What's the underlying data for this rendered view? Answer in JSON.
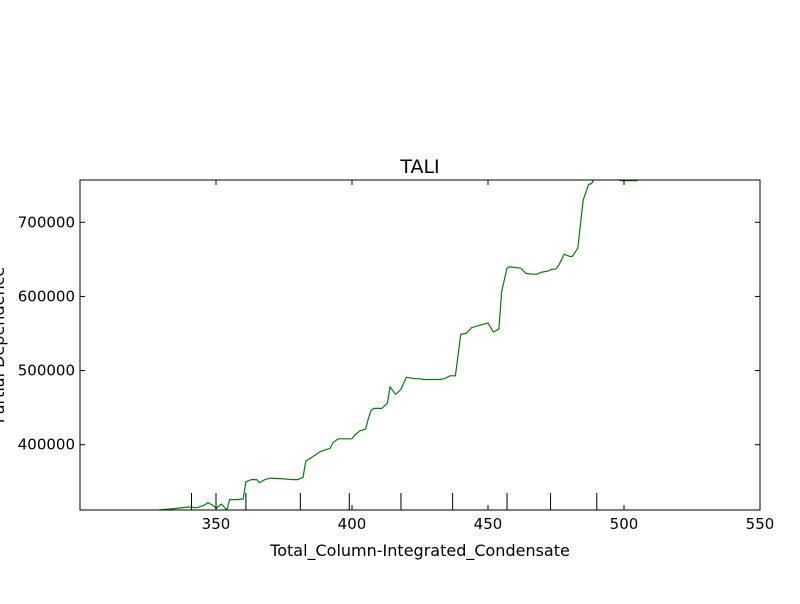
{
  "chart_data": {
    "type": "line",
    "title": "TALI",
    "xlabel": "Total_Column-Integrated_Condensate",
    "ylabel": "Partial Dependence",
    "xlim": [
      300,
      550
    ],
    "ylim": [
      312000,
      757000
    ],
    "x_ticks": [
      350,
      400,
      450,
      500,
      550
    ],
    "y_ticks": [
      400000,
      500000,
      600000,
      700000
    ],
    "grid": false,
    "rug_x": [
      341,
      350,
      361,
      381,
      399,
      418,
      437,
      457,
      473,
      490
    ],
    "series": [
      {
        "color": "#008000",
        "x": [
          329,
          335,
          340,
          343,
          346,
          347,
          349,
          350,
          352,
          354,
          355,
          358,
          360,
          361,
          363,
          365,
          366,
          368,
          370,
          375,
          378,
          380,
          382,
          383,
          386,
          388,
          390,
          392,
          393,
          395,
          398,
          400,
          401,
          403,
          405,
          406,
          407,
          408,
          410,
          411,
          413,
          414,
          416,
          417,
          418,
          420,
          423,
          425,
          426,
          428,
          429,
          430,
          432,
          434,
          436,
          438,
          440,
          442,
          444,
          446,
          448,
          450,
          452,
          454,
          455,
          457,
          458,
          460,
          462,
          464,
          466,
          467,
          468,
          470,
          472,
          473,
          475,
          476,
          478,
          480,
          481,
          483,
          485,
          487,
          488,
          489,
          490,
          492,
          493,
          495,
          497,
          499,
          501,
          503,
          505
        ],
        "y": [
          312000,
          314000,
          316000,
          315000,
          319000,
          322000,
          318000,
          314000,
          320000,
          312000,
          326000,
          326000,
          327000,
          350000,
          353000,
          353000,
          349000,
          353000,
          355000,
          354000,
          353000,
          353000,
          356000,
          378000,
          385000,
          390000,
          393000,
          395000,
          403000,
          408000,
          408000,
          408000,
          413000,
          419000,
          421000,
          435000,
          446000,
          449000,
          449000,
          449000,
          456000,
          478000,
          468000,
          471000,
          475000,
          491000,
          489000,
          489000,
          488000,
          488000,
          488000,
          488000,
          488000,
          489000,
          493000,
          493000,
          549000,
          550000,
          558000,
          560000,
          562000,
          564000,
          552000,
          556000,
          606000,
          638000,
          640000,
          639000,
          638000,
          631000,
          630000,
          630000,
          630000,
          633000,
          634000,
          636000,
          637000,
          642000,
          657000,
          654000,
          654000,
          665000,
          730000,
          751000,
          752000,
          758000,
          762000,
          764000,
          762000,
          760000,
          758000,
          756000,
          756000,
          756000,
          756000
        ]
      }
    ]
  }
}
